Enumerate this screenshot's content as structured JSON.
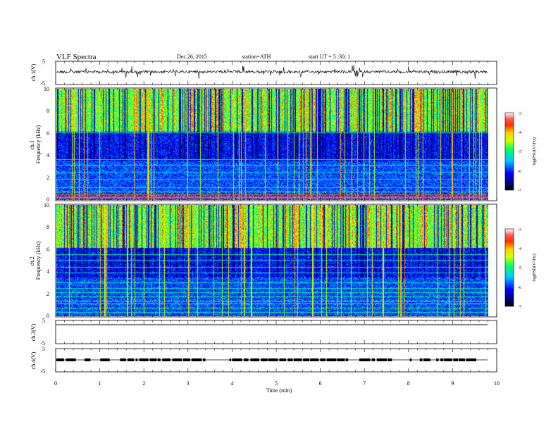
{
  "header": {
    "title": "VLF  Spectra",
    "date": "Dec.26, 2015",
    "station": "station=ATH",
    "start": "start  UT  =   5  :30: 1"
  },
  "chart_data": [
    {
      "type": "line",
      "panel": "ch1-waveform",
      "ylabel": "ch.1(V)",
      "xlim": [
        0,
        10
      ],
      "ylim": [
        -5,
        5
      ],
      "yticks": [
        "5",
        "-5"
      ]
    },
    {
      "type": "heatmap",
      "panel": "ch1-spectrogram",
      "ylabel": "ch.1\nFrequency (kHz)",
      "xlim": [
        0,
        10
      ],
      "ylim": [
        0,
        10
      ],
      "yticks": [
        "10",
        "8",
        "6",
        "4",
        "2",
        "0"
      ],
      "colorbar": {
        "label": "log(PSD(V²/Hz)",
        "range": [
          -7,
          -3
        ],
        "ticks": [
          "-3",
          "-4",
          "-5",
          "-6",
          "-7"
        ]
      }
    },
    {
      "type": "heatmap",
      "panel": "ch2-spectrogram",
      "ylabel": "ch.2\nFrequency (kHz)",
      "xlim": [
        0,
        10
      ],
      "ylim": [
        0,
        10
      ],
      "yticks": [
        "10",
        "8",
        "6",
        "4",
        "2",
        "0"
      ],
      "colorbar": {
        "label": "log(PSD(V²/Hz)",
        "range": [
          -7,
          -3
        ],
        "ticks": [
          "-3",
          "-4",
          "-5",
          "-6",
          "-7"
        ]
      }
    },
    {
      "type": "line",
      "panel": "ch3-waveform",
      "ylabel": "ch.3(V)",
      "xlim": [
        0,
        10
      ],
      "ylim": [
        -5,
        5
      ],
      "yticks": [
        "5",
        "-5"
      ]
    },
    {
      "type": "line",
      "panel": "ch4-waveform",
      "ylabel": "ch.4(V)",
      "xlim": [
        0,
        10
      ],
      "ylim": [
        -5,
        5
      ],
      "yticks": [
        "5",
        "-5"
      ],
      "xlabel": "Time  (min)",
      "xticks": [
        "0",
        "1",
        "2",
        "3",
        "4",
        "5",
        "6",
        "7",
        "8",
        "9",
        "10"
      ]
    }
  ]
}
